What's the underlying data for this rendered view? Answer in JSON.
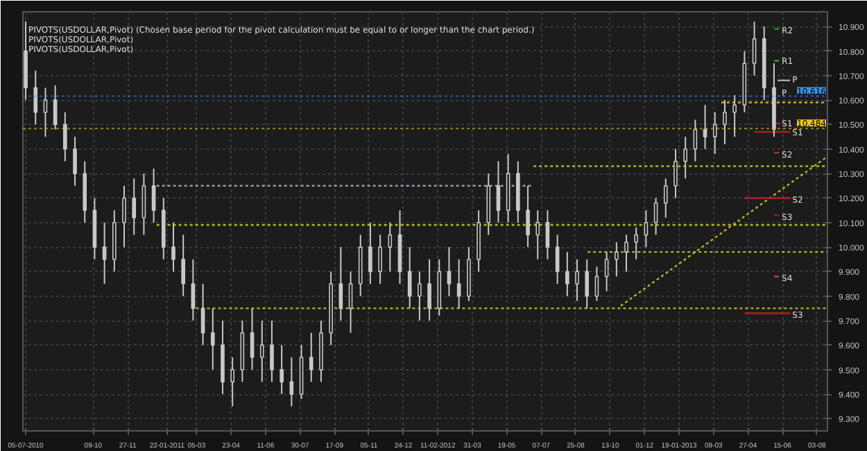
{
  "chart_data": {
    "type": "candlestick",
    "color": "#c8c8c8",
    "x": [
      "2010-07-05",
      "2010-07-19",
      "2010-08-02",
      "2010-08-16",
      "2010-08-30",
      "2010-09-13",
      "2010-09-27",
      "2010-10-11",
      "2010-10-25",
      "2010-11-08",
      "2010-11-22",
      "2010-12-06",
      "2010-12-20",
      "2011-01-03",
      "2011-01-17",
      "2011-01-31",
      "2011-02-14",
      "2011-02-28",
      "2011-03-14",
      "2011-03-28",
      "2011-04-11",
      "2011-04-25",
      "2011-05-09",
      "2011-05-23",
      "2011-06-06",
      "2011-06-20",
      "2011-07-04",
      "2011-07-18",
      "2011-08-01",
      "2011-08-15",
      "2011-08-29",
      "2011-09-12",
      "2011-09-26",
      "2011-10-10",
      "2011-10-24",
      "2011-11-07",
      "2011-11-21",
      "2011-12-05",
      "2011-12-19",
      "2012-01-02",
      "2012-01-16",
      "2012-01-30",
      "2012-02-13",
      "2012-02-27",
      "2012-03-12",
      "2012-03-26",
      "2012-04-09",
      "2012-04-23",
      "2012-05-07",
      "2012-05-21",
      "2012-06-04",
      "2012-06-18",
      "2012-07-02",
      "2012-07-16",
      "2012-07-30",
      "2012-08-13",
      "2012-08-27",
      "2012-09-10",
      "2012-09-24",
      "2012-10-08",
      "2012-10-22",
      "2012-11-05",
      "2012-11-19",
      "2012-12-03",
      "2012-12-17",
      "2012-12-31",
      "2013-01-14",
      "2013-01-28",
      "2013-02-11",
      "2013-02-25",
      "2013-03-11",
      "2013-03-25",
      "2013-04-08",
      "2013-04-22",
      "2013-05-06",
      "2013-05-20",
      "2013-06-03"
    ],
    "ohlc": [
      [
        10.8,
        10.92,
        10.6,
        10.65
      ],
      [
        10.65,
        10.72,
        10.5,
        10.55
      ],
      [
        10.55,
        10.65,
        10.45,
        10.6
      ],
      [
        10.6,
        10.66,
        10.48,
        10.5
      ],
      [
        10.5,
        10.55,
        10.35,
        10.4
      ],
      [
        10.4,
        10.45,
        10.25,
        10.3
      ],
      [
        10.3,
        10.35,
        10.1,
        10.15
      ],
      [
        10.15,
        10.2,
        9.95,
        10.0
      ],
      [
        10.0,
        10.1,
        9.85,
        9.95
      ],
      [
        9.95,
        10.15,
        9.9,
        10.1
      ],
      [
        10.1,
        10.25,
        10.0,
        10.2
      ],
      [
        10.2,
        10.28,
        10.05,
        10.12
      ],
      [
        10.12,
        10.3,
        10.05,
        10.25
      ],
      [
        10.25,
        10.32,
        10.1,
        10.15
      ],
      [
        10.15,
        10.2,
        9.95,
        10.0
      ],
      [
        10.0,
        10.1,
        9.9,
        9.95
      ],
      [
        9.95,
        10.05,
        9.8,
        9.85
      ],
      [
        9.85,
        9.95,
        9.7,
        9.75
      ],
      [
        9.75,
        9.85,
        9.6,
        9.65
      ],
      [
        9.65,
        9.75,
        9.5,
        9.6
      ],
      [
        9.6,
        9.7,
        9.4,
        9.45
      ],
      [
        9.45,
        9.55,
        9.35,
        9.5
      ],
      [
        9.5,
        9.7,
        9.45,
        9.65
      ],
      [
        9.65,
        9.75,
        9.5,
        9.55
      ],
      [
        9.55,
        9.7,
        9.45,
        9.6
      ],
      [
        9.6,
        9.7,
        9.45,
        9.5
      ],
      [
        9.5,
        9.6,
        9.4,
        9.45
      ],
      [
        9.45,
        9.55,
        9.35,
        9.4
      ],
      [
        9.4,
        9.6,
        9.38,
        9.55
      ],
      [
        9.55,
        9.65,
        9.45,
        9.5
      ],
      [
        9.5,
        9.7,
        9.45,
        9.65
      ],
      [
        9.65,
        9.9,
        9.6,
        9.85
      ],
      [
        9.85,
        10.0,
        9.7,
        9.75
      ],
      [
        9.75,
        9.9,
        9.65,
        9.85
      ],
      [
        9.85,
        10.05,
        9.8,
        10.0
      ],
      [
        10.0,
        10.1,
        9.85,
        9.9
      ],
      [
        9.9,
        10.05,
        9.85,
        10.0
      ],
      [
        10.0,
        10.1,
        9.9,
        10.05
      ],
      [
        10.05,
        10.15,
        9.85,
        9.9
      ],
      [
        9.9,
        10.0,
        9.75,
        9.8
      ],
      [
        9.8,
        9.9,
        9.7,
        9.85
      ],
      [
        9.85,
        9.95,
        9.7,
        9.75
      ],
      [
        9.75,
        9.95,
        9.72,
        9.9
      ],
      [
        9.9,
        10.0,
        9.8,
        9.85
      ],
      [
        9.85,
        9.95,
        9.75,
        9.8
      ],
      [
        9.8,
        10.0,
        9.78,
        9.95
      ],
      [
        9.95,
        10.15,
        9.9,
        10.1
      ],
      [
        10.1,
        10.3,
        10.05,
        10.25
      ],
      [
        10.25,
        10.35,
        10.1,
        10.15
      ],
      [
        10.15,
        10.38,
        10.1,
        10.3
      ],
      [
        10.3,
        10.35,
        10.1,
        10.15
      ],
      [
        10.15,
        10.25,
        10.0,
        10.05
      ],
      [
        10.05,
        10.15,
        9.95,
        10.1
      ],
      [
        10.1,
        10.15,
        9.95,
        10.0
      ],
      [
        10.0,
        10.05,
        9.85,
        9.9
      ],
      [
        9.9,
        9.98,
        9.8,
        9.85
      ],
      [
        9.85,
        9.95,
        9.78,
        9.9
      ],
      [
        9.9,
        9.95,
        9.75,
        9.8
      ],
      [
        9.8,
        9.92,
        9.78,
        9.88
      ],
      [
        9.88,
        9.98,
        9.82,
        9.95
      ],
      [
        9.95,
        10.02,
        9.88,
        9.98
      ],
      [
        9.98,
        10.05,
        9.9,
        10.02
      ],
      [
        10.02,
        10.08,
        9.95,
        10.05
      ],
      [
        10.05,
        10.15,
        10.0,
        10.1
      ],
      [
        10.1,
        10.2,
        10.05,
        10.18
      ],
      [
        10.18,
        10.28,
        10.12,
        10.25
      ],
      [
        10.25,
        10.4,
        10.2,
        10.35
      ],
      [
        10.35,
        10.45,
        10.28,
        10.4
      ],
      [
        10.4,
        10.52,
        10.35,
        10.48
      ],
      [
        10.48,
        10.58,
        10.4,
        10.45
      ],
      [
        10.45,
        10.55,
        10.38,
        10.5
      ],
      [
        10.5,
        10.6,
        10.42,
        10.55
      ],
      [
        10.55,
        10.62,
        10.45,
        10.58
      ],
      [
        10.58,
        10.8,
        10.55,
        10.75
      ],
      [
        10.75,
        10.92,
        10.7,
        10.85
      ],
      [
        10.85,
        10.9,
        10.6,
        10.65
      ],
      [
        10.65,
        10.75,
        10.45,
        10.48
      ]
    ],
    "series": [
      {
        "type": "line",
        "color": "#b5b52a",
        "line_style": "dotted",
        "x": [
          "2013-03-20",
          "2013-08-18"
        ],
        "values": [
          10.59,
          10.59
        ]
      },
      {
        "type": "line",
        "color": "#b5b52a",
        "line_style": "dotted",
        "x": [
          "2012-06-26",
          "2013-08-18"
        ],
        "values": [
          10.33,
          10.33
        ]
      },
      {
        "type": "line",
        "color": "#9a9ab8",
        "line_style": "dotted",
        "x": [
          "2011-01-07",
          "2012-06-26"
        ],
        "values": [
          10.25,
          10.25
        ]
      },
      {
        "type": "line",
        "color": "#b5b52a",
        "line_style": "dotted",
        "x": [
          "2011-01-07",
          "2013-08-18"
        ],
        "values": [
          10.09,
          10.09
        ]
      },
      {
        "type": "line",
        "color": "#b5b52a",
        "line_style": "dotted",
        "x": [
          "2012-09-11",
          "2013-08-18"
        ],
        "values": [
          9.98,
          9.98
        ]
      },
      {
        "type": "line",
        "color": "#b5b52a",
        "line_style": "dotted",
        "x": [
          "2011-03-04",
          "2013-08-18"
        ],
        "values": [
          9.75,
          9.75
        ]
      },
      {
        "type": "line",
        "color": "#b5b52a",
        "line_style": "dotted",
        "x": [
          "2012-10-28",
          "2013-08-18"
        ],
        "values": [
          9.76,
          10.37
        ]
      },
      {
        "type": "line",
        "color": "#2e8b2e",
        "line_style": "solid",
        "x": [
          "2013-06-03",
          "2013-06-10"
        ],
        "values": [
          10.89,
          10.89
        ]
      },
      {
        "type": "line",
        "color": "#3aa03a",
        "line_style": "solid",
        "x": [
          "2013-06-03",
          "2013-06-10"
        ],
        "values": [
          10.76,
          10.76
        ]
      },
      {
        "type": "line",
        "color": "#aaaaaa",
        "line_style": "solid",
        "x": [
          "2013-06-08",
          "2013-06-26"
        ],
        "values": [
          10.68,
          10.68
        ]
      },
      {
        "type": "line",
        "color": "#902828",
        "line_style": "solid",
        "x": [
          "2013-06-06",
          "2013-06-12"
        ],
        "values": [
          10.505,
          10.505
        ]
      },
      {
        "type": "line",
        "color": "#b02020",
        "line_style": "solid",
        "x": [
          "2013-05-06",
          "2013-06-26"
        ],
        "values": [
          10.47,
          10.47
        ]
      },
      {
        "type": "line",
        "color": "#c03030",
        "line_style": "solid",
        "x": [
          "2013-06-03",
          "2013-06-10"
        ],
        "values": [
          10.385,
          10.385
        ]
      },
      {
        "type": "line",
        "color": "#b02020",
        "line_style": "solid",
        "x": [
          "2013-04-22",
          "2013-06-26"
        ],
        "values": [
          10.2,
          10.2
        ]
      },
      {
        "type": "line",
        "color": "#a01818",
        "line_style": "solid",
        "x": [
          "2013-06-03",
          "2013-06-10"
        ],
        "values": [
          10.13,
          10.13
        ]
      },
      {
        "type": "line",
        "color": "#d04040",
        "line_style": "solid",
        "x": [
          "2013-06-03",
          "2013-06-10"
        ],
        "values": [
          9.88,
          9.88
        ]
      },
      {
        "type": "line",
        "color": "#b02020",
        "line_style": "solid",
        "x": [
          "2013-04-22",
          "2013-06-26"
        ],
        "values": [
          9.73,
          9.73
        ]
      }
    ],
    "annotations": [
      "PIVOTS(USDOLLAR,Pivot) (Chosen base period for the pivot calculation must be equal to or longer than the chart period.)",
      "PIVOTS(USDOLLAR,Pivot)",
      "PIVOTS(USDOLLAR,Pivot)",
      {
        "text": "R2",
        "x": "2013-06-14",
        "y": 10.88
      },
      {
        "text": "R1",
        "x": "2013-06-14",
        "y": 10.755
      },
      {
        "text": "P",
        "x": "2013-06-29",
        "y": 10.68
      },
      {
        "text": "P",
        "x": "2013-06-14",
        "y": 10.625
      },
      {
        "text": "S1",
        "x": "2013-06-14",
        "y": 10.5
      },
      {
        "text": "S1",
        "x": "2013-06-29",
        "y": 10.465
      },
      {
        "text": "S2",
        "x": "2013-06-14",
        "y": 10.375
      },
      {
        "text": "S2",
        "x": "2013-06-29",
        "y": 10.19
      },
      {
        "text": "S3",
        "x": "2013-06-14",
        "y": 10.12
      },
      {
        "text": "S4",
        "x": "2013-06-14",
        "y": 9.87
      },
      {
        "text": "S3",
        "x": "2013-06-29",
        "y": 9.72
      }
    ],
    "ref_lines": [
      {
        "axis": "y",
        "value": 10.616,
        "label": "10.616",
        "color": "#3a8ee6",
        "line_style": "dotted"
      },
      {
        "axis": "y",
        "value": 10.484,
        "label": "10.484",
        "color": "#e8c81c",
        "line_style": "dotted"
      }
    ],
    "xlim": [
      "2010-07-01",
      "2013-08-18"
    ],
    "xticks": [
      {
        "value": "2010-07-05",
        "label": "05-07-2010"
      },
      {
        "value": "2010-10-09",
        "label": "09-10"
      },
      {
        "value": "2010-11-27",
        "label": "27-11"
      },
      {
        "value": "2011-01-22",
        "label": "22-01-2011"
      },
      {
        "value": "2011-03-05",
        "label": "05-03"
      },
      {
        "value": "2011-04-23",
        "label": "23-04"
      },
      {
        "value": "2011-06-11",
        "label": "11-06"
      },
      {
        "value": "2011-07-30",
        "label": "30-07"
      },
      {
        "value": "2011-09-17",
        "label": "17-09"
      },
      {
        "value": "2011-11-05",
        "label": "05-11"
      },
      {
        "value": "2011-12-24",
        "label": "24-12"
      },
      {
        "value": "2012-02-11",
        "label": "11-02-2012"
      },
      {
        "value": "2012-03-31",
        "label": "31-03"
      },
      {
        "value": "2012-05-19",
        "label": "19-05"
      },
      {
        "value": "2012-07-07",
        "label": "07-07"
      },
      {
        "value": "2012-08-25",
        "label": "25-08"
      },
      {
        "value": "2012-10-13",
        "label": "13-10"
      },
      {
        "value": "2012-12-01",
        "label": "01-12"
      },
      {
        "value": "2013-01-19",
        "label": "19-01-2013"
      },
      {
        "value": "2013-03-09",
        "label": "09-03"
      },
      {
        "value": "2013-04-27",
        "label": "27-04"
      },
      {
        "value": "2013-06-15",
        "label": "15-06"
      },
      {
        "value": "2013-08-03",
        "label": "03-08"
      }
    ],
    "ylim": [
      9.25,
      10.96
    ],
    "yticks": [
      {
        "value": 9.3,
        "label": "9.300"
      },
      {
        "value": 9.4,
        "label": "9.400"
      },
      {
        "value": 9.5,
        "label": "9.500"
      },
      {
        "value": 9.6,
        "label": "9.600"
      },
      {
        "value": 9.7,
        "label": "9.700"
      },
      {
        "value": 9.8,
        "label": "9.800"
      },
      {
        "value": 9.9,
        "label": "9.900"
      },
      {
        "value": 10.0,
        "label": "10.000"
      },
      {
        "value": 10.1,
        "label": "10.100"
      },
      {
        "value": 10.2,
        "label": "10.200"
      },
      {
        "value": 10.3,
        "label": "10.300"
      },
      {
        "value": 10.4,
        "label": "10.400"
      },
      {
        "value": 10.5,
        "label": "10.500"
      },
      {
        "value": 10.6,
        "label": "10.600"
      },
      {
        "value": 10.7,
        "label": "10.700"
      },
      {
        "value": 10.8,
        "label": "10.800"
      },
      {
        "value": 10.9,
        "label": "10.900"
      }
    ],
    "grid": true
  }
}
